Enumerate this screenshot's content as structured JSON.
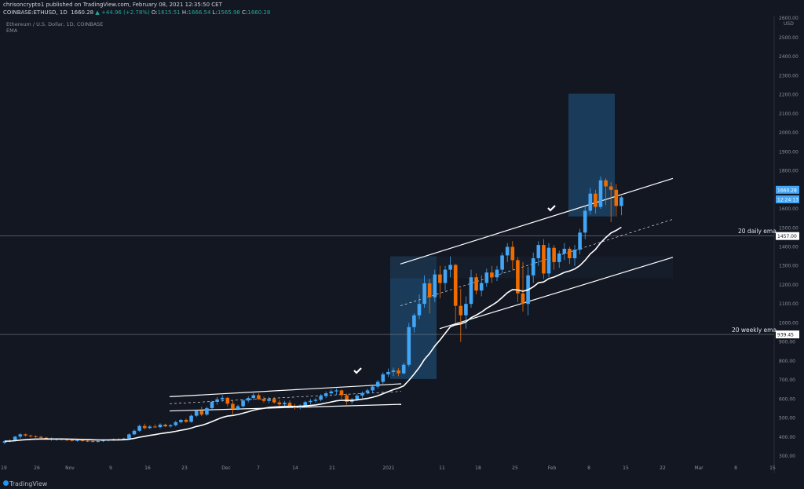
{
  "header": {
    "line1": "chrisoncrypto1 published on TradingView.com, February 08, 2021 12:35:50 CET",
    "symbol": "COINBASE:ETHUSD, 1D",
    "last": "1660.28",
    "change": "▲ +44.96 (+2.78%)",
    "o_label": "O:",
    "o": "1615.51",
    "h_label": "H:",
    "h": "1666.54",
    "l_label": "L:",
    "l": "1565.98",
    "c_label": "C:",
    "c": "1660.28"
  },
  "legend": {
    "title": "Ethereum / U.S. Dollar, 1D, COINBASE",
    "indicator": "EMA"
  },
  "annotations": {
    "daily_ema": "20 daily ema",
    "weekly_ema": "20 weekly ema"
  },
  "price_tags": {
    "last": "1660.28",
    "countdown": "12:24:13",
    "daily_ema": "1457.00",
    "weekly_ema": "939.45"
  },
  "footer": {
    "brand": "TradingView"
  },
  "colors": {
    "background": "#131722",
    "bull": "#42a5f5",
    "bear": "#ef6c00",
    "ema": "#ffffff",
    "box": "#1e4a6e"
  },
  "chart_data": {
    "type": "candlestick",
    "currency": "USD",
    "y_ticks": [
      300,
      400,
      500,
      600,
      700,
      800,
      900,
      1000,
      1100,
      1200,
      1300,
      1400,
      1500,
      1600,
      1700,
      1800,
      1900,
      2000,
      2100,
      2200,
      2300,
      2400,
      2500
    ],
    "y_top_label": "2600.00",
    "x_ticks": [
      "19",
      "26",
      "Nov",
      "9",
      "16",
      "23",
      "Dec",
      "7",
      "14",
      "21",
      "2021",
      "11",
      "18",
      "25",
      "Feb",
      "8",
      "15",
      "22",
      "Mar",
      "8",
      "15"
    ],
    "horizontal_levels": [
      1457.0,
      939.45
    ],
    "candles": [
      [
        370,
        382,
        362,
        378
      ],
      [
        378,
        388,
        372,
        381
      ],
      [
        381,
        406,
        377,
        402
      ],
      [
        402,
        420,
        392,
        414
      ],
      [
        414,
        418,
        402,
        408
      ],
      [
        408,
        412,
        397,
        404
      ],
      [
        404,
        409,
        396,
        401
      ],
      [
        401,
        406,
        390,
        396
      ],
      [
        396,
        401,
        386,
        392
      ],
      [
        392,
        398,
        380,
        388
      ],
      [
        388,
        394,
        380,
        390
      ],
      [
        390,
        393,
        382,
        388
      ],
      [
        388,
        392,
        378,
        384
      ],
      [
        384,
        388,
        376,
        381
      ],
      [
        381,
        386,
        376,
        383
      ],
      [
        383,
        387,
        375,
        380
      ],
      [
        380,
        384,
        374,
        378
      ],
      [
        378,
        382,
        372,
        377
      ],
      [
        377,
        381,
        370,
        379
      ],
      [
        379,
        385,
        374,
        382
      ],
      [
        382,
        388,
        377,
        386
      ],
      [
        386,
        392,
        380,
        389
      ],
      [
        389,
        394,
        383,
        387
      ],
      [
        387,
        396,
        382,
        392
      ],
      [
        392,
        420,
        388,
        414
      ],
      [
        414,
        440,
        410,
        433
      ],
      [
        433,
        465,
        428,
        458
      ],
      [
        458,
        470,
        440,
        447
      ],
      [
        447,
        462,
        442,
        455
      ],
      [
        455,
        466,
        448,
        452
      ],
      [
        452,
        472,
        446,
        465
      ],
      [
        465,
        470,
        452,
        456
      ],
      [
        456,
        468,
        450,
        462
      ],
      [
        462,
        485,
        456,
        478
      ],
      [
        478,
        495,
        472,
        490
      ],
      [
        490,
        497,
        475,
        480
      ],
      [
        480,
        520,
        475,
        512
      ],
      [
        512,
        545,
        505,
        538
      ],
      [
        538,
        560,
        510,
        518
      ],
      [
        518,
        560,
        512,
        552
      ],
      [
        552,
        590,
        545,
        585
      ],
      [
        585,
        610,
        570,
        598
      ],
      [
        598,
        620,
        585,
        606
      ],
      [
        606,
        612,
        560,
        575
      ],
      [
        575,
        590,
        520,
        548
      ],
      [
        548,
        570,
        540,
        562
      ],
      [
        562,
        600,
        555,
        592
      ],
      [
        592,
        615,
        582,
        605
      ],
      [
        605,
        640,
        595,
        620
      ],
      [
        620,
        630,
        595,
        600
      ],
      [
        600,
        612,
        580,
        590
      ],
      [
        590,
        610,
        578,
        600
      ],
      [
        600,
        610,
        575,
        582
      ],
      [
        582,
        595,
        560,
        572
      ],
      [
        572,
        590,
        560,
        580
      ],
      [
        580,
        592,
        555,
        562
      ],
      [
        562,
        575,
        545,
        555
      ],
      [
        555,
        572,
        545,
        566
      ],
      [
        566,
        590,
        558,
        584
      ],
      [
        584,
        600,
        572,
        590
      ],
      [
        590,
        605,
        580,
        596
      ],
      [
        596,
        625,
        588,
        615
      ],
      [
        615,
        640,
        605,
        630
      ],
      [
        630,
        650,
        615,
        640
      ],
      [
        640,
        655,
        620,
        645
      ],
      [
        645,
        650,
        600,
        620
      ],
      [
        620,
        628,
        570,
        585
      ],
      [
        585,
        605,
        575,
        598
      ],
      [
        598,
        625,
        590,
        618
      ],
      [
        618,
        640,
        605,
        632
      ],
      [
        632,
        655,
        625,
        645
      ],
      [
        645,
        670,
        630,
        665
      ],
      [
        665,
        700,
        655,
        690
      ],
      [
        690,
        740,
        680,
        730
      ],
      [
        730,
        760,
        715,
        742
      ],
      [
        742,
        765,
        720,
        750
      ],
      [
        750,
        762,
        720,
        735
      ],
      [
        735,
        790,
        728,
        780
      ],
      [
        780,
        1000,
        770,
        978
      ],
      [
        978,
        1050,
        950,
        1040
      ],
      [
        1040,
        1150,
        1020,
        1100
      ],
      [
        1100,
        1250,
        1080,
        1208
      ],
      [
        1208,
        1230,
        1050,
        1135
      ],
      [
        1135,
        1280,
        1110,
        1255
      ],
      [
        1255,
        1300,
        1130,
        1210
      ],
      [
        1210,
        1300,
        1170,
        1280
      ],
      [
        1280,
        1350,
        1240,
        1305
      ],
      [
        1305,
        1310,
        1000,
        1090
      ],
      [
        1090,
        1180,
        900,
        1040
      ],
      [
        1040,
        1140,
        970,
        1100
      ],
      [
        1100,
        1280,
        1080,
        1240
      ],
      [
        1240,
        1260,
        1150,
        1170
      ],
      [
        1170,
        1250,
        1140,
        1210
      ],
      [
        1210,
        1285,
        1190,
        1265
      ],
      [
        1265,
        1300,
        1210,
        1240
      ],
      [
        1240,
        1300,
        1220,
        1280
      ],
      [
        1280,
        1370,
        1260,
        1355
      ],
      [
        1355,
        1420,
        1320,
        1400
      ],
      [
        1400,
        1430,
        1280,
        1330
      ],
      [
        1330,
        1345,
        1110,
        1155
      ],
      [
        1155,
        1320,
        1060,
        1100
      ],
      [
        1100,
        1295,
        1040,
        1250
      ],
      [
        1250,
        1370,
        1210,
        1340
      ],
      [
        1340,
        1430,
        1300,
        1410
      ],
      [
        1410,
        1440,
        1230,
        1260
      ],
      [
        1260,
        1420,
        1240,
        1395
      ],
      [
        1395,
        1410,
        1280,
        1320
      ],
      [
        1320,
        1380,
        1290,
        1365
      ],
      [
        1365,
        1420,
        1330,
        1390
      ],
      [
        1390,
        1400,
        1310,
        1340
      ],
      [
        1340,
        1410,
        1300,
        1385
      ],
      [
        1385,
        1495,
        1360,
        1475
      ],
      [
        1475,
        1620,
        1440,
        1590
      ],
      [
        1590,
        1710,
        1570,
        1680
      ],
      [
        1680,
        1700,
        1575,
        1610
      ],
      [
        1610,
        1770,
        1600,
        1750
      ],
      [
        1750,
        1760,
        1620,
        1718
      ],
      [
        1718,
        1740,
        1530,
        1700
      ],
      [
        1700,
        1730,
        1560,
        1615
      ],
      [
        1615,
        1666.54,
        1565.98,
        1660.28
      ]
    ]
  }
}
